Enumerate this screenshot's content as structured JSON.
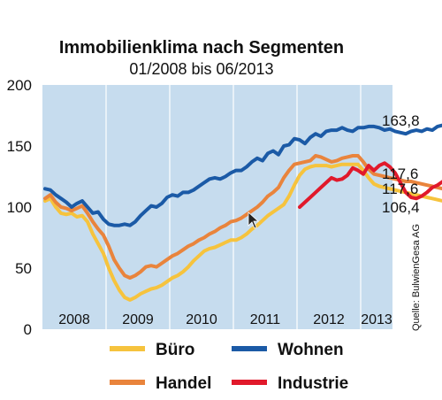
{
  "chart_data": {
    "type": "line",
    "title": "Immobilienklima nach Segmenten",
    "subtitle": "01/2008 bis 06/2013",
    "source": "Quelle: BulwienGesa AG",
    "ylim": [
      0,
      200
    ],
    "yticks": [
      "0",
      "50",
      "100",
      "150",
      "200"
    ],
    "x_start": "2008-01",
    "x_end": "2013-06",
    "xtick_labels": [
      "2008",
      "2009",
      "2010",
      "2011",
      "2012",
      "2013"
    ],
    "grid": "vertical year separators",
    "legend_position": "bottom",
    "background": "#c6dcee",
    "series": [
      {
        "name": "Wohnen",
        "color": "#1b5aa6",
        "end_label": "163,8",
        "values": [
          115,
          114,
          110,
          107,
          104,
          100,
          103,
          105,
          100,
          95,
          96,
          90,
          86,
          85,
          85,
          86,
          85,
          88,
          93,
          97,
          101,
          100,
          103,
          108,
          110,
          109,
          112,
          112,
          114,
          117,
          120,
          123,
          124,
          123,
          125,
          128,
          130,
          130,
          133,
          137,
          140,
          138,
          144,
          146,
          143,
          150,
          151,
          156,
          155,
          152,
          157,
          160,
          158,
          162,
          163,
          163,
          165,
          163,
          162,
          165,
          165,
          166,
          166,
          165,
          163,
          164,
          162,
          161,
          160,
          162,
          163,
          162,
          164,
          163,
          166,
          167,
          168,
          167,
          166,
          165,
          164,
          166,
          164,
          166,
          168,
          170,
          168,
          165,
          160,
          168,
          166,
          165,
          163.8
        ]
      },
      {
        "name": "Handel",
        "color": "#e9843c",
        "end_label": "117,6",
        "values": [
          107,
          110,
          104,
          100,
          99,
          97,
          99,
          101,
          95,
          88,
          82,
          77,
          68,
          57,
          50,
          44,
          42,
          44,
          47,
          51,
          52,
          51,
          54,
          57,
          60,
          62,
          65,
          68,
          70,
          73,
          75,
          78,
          80,
          83,
          85,
          88,
          89,
          91,
          94,
          97,
          100,
          104,
          109,
          112,
          116,
          124,
          130,
          135,
          136,
          137,
          138,
          142,
          141,
          139,
          137,
          138,
          140,
          141,
          142,
          142,
          137,
          131,
          127,
          126,
          125,
          124,
          123,
          122,
          121,
          121,
          120,
          119,
          118,
          117,
          116,
          115,
          114,
          113,
          112,
          111,
          110,
          109,
          108,
          111,
          114,
          116,
          118,
          119,
          118,
          119,
          118,
          117,
          117.6
        ]
      },
      {
        "name": "Büro",
        "color": "#f6c33d",
        "end_label": "106,4",
        "values": [
          105,
          107,
          100,
          95,
          94,
          95,
          92,
          93,
          88,
          78,
          70,
          62,
          50,
          40,
          32,
          26,
          24,
          26,
          29,
          31,
          33,
          34,
          36,
          39,
          42,
          44,
          47,
          51,
          56,
          60,
          64,
          66,
          67,
          69,
          71,
          73,
          73,
          75,
          78,
          82,
          85,
          89,
          93,
          96,
          99,
          102,
          109,
          118,
          126,
          131,
          133,
          134,
          134,
          134,
          133,
          134,
          135,
          135,
          135,
          135,
          130,
          124,
          119,
          117,
          116,
          115,
          114,
          113,
          112,
          111,
          110,
          109,
          108,
          107,
          106,
          105,
          104,
          103,
          102,
          101,
          100,
          99,
          98,
          100,
          104,
          107,
          109,
          110,
          109,
          109,
          108,
          107,
          106.4
        ]
      },
      {
        "name": "Industrie",
        "color": "#e1192b",
        "end_label": "117,6",
        "start_index": 48,
        "values": [
          100,
          104,
          108,
          112,
          116,
          120,
          124,
          122,
          123,
          126,
          132,
          130,
          127,
          134,
          130,
          134,
          136,
          133,
          128,
          120,
          112,
          108,
          107,
          109,
          112,
          116,
          118,
          121,
          120,
          118,
          116,
          114,
          111,
          109,
          108,
          107,
          106,
          105,
          104,
          104,
          103,
          103,
          115,
          125,
          122,
          117.6
        ]
      }
    ]
  }
}
